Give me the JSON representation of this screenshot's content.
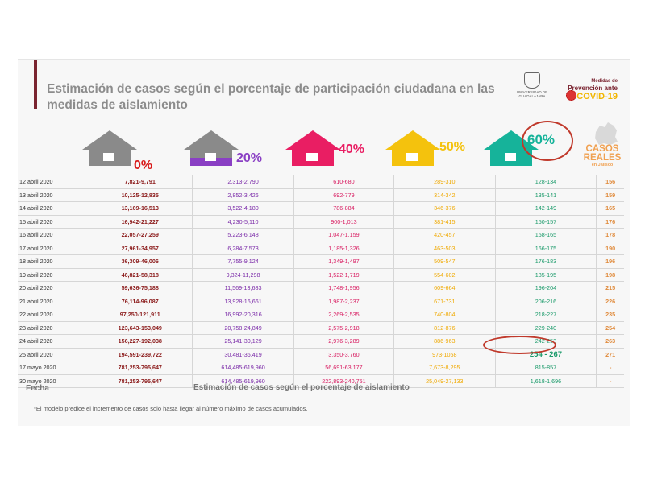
{
  "header": {
    "title": "Estimación de casos según el porcentaje de participación ciudadana en las medidas de aislamiento",
    "udg_logo_text": "UNIVERSIDAD DE GUADALAJARA",
    "covid_logo": {
      "line1": "Medidas de",
      "line2": "Prevención ante",
      "line3": "COVID-19"
    }
  },
  "chart_data": {
    "type": "table",
    "title": "Estimación de casos según el porcentaje de participación ciudadana en las medidas de aislamiento",
    "xlabel": "Estimación de casos según el porcentaje de aislamiento",
    "row_header": "Fecha",
    "columns": [
      {
        "label": "0%",
        "color": "#d81b1b"
      },
      {
        "label": "20%",
        "color": "#8a3fc4"
      },
      {
        "label": "40%",
        "color": "#e91e63"
      },
      {
        "label": "50%",
        "color": "#f4c20d"
      },
      {
        "label": "60%",
        "color": "#16b39a"
      },
      {
        "label": "CASOS REALES",
        "sub": "en Jalisco",
        "color": "#f0a050"
      }
    ],
    "rows": [
      {
        "date": "12 abril 2020",
        "v0": "7,821-9,791",
        "v20": "2,313-2,790",
        "v40": "610-680",
        "v50": "289-310",
        "v60": "128-134",
        "real": "156"
      },
      {
        "date": "13 abril 2020",
        "v0": "10,125-12,835",
        "v20": "2,852-3,426",
        "v40": "692-779",
        "v50": "314-342",
        "v60": "135-141",
        "real": "159"
      },
      {
        "date": "14 abril 2020",
        "v0": "13,169-16,513",
        "v20": "3,522-4,180",
        "v40": "786-884",
        "v50": "346-376",
        "v60": "142-149",
        "real": "165"
      },
      {
        "date": "15 abril 2020",
        "v0": "16,942-21,227",
        "v20": "4,230-5,110",
        "v40": "900-1,013",
        "v50": "381-415",
        "v60": "150-157",
        "real": "176"
      },
      {
        "date": "16 abril 2020",
        "v0": "22,057-27,259",
        "v20": "5,223-6,148",
        "v40": "1,047-1,159",
        "v50": "420-457",
        "v60": "158-165",
        "real": "178"
      },
      {
        "date": "17 abril 2020",
        "v0": "27,961-34,957",
        "v20": "6,284-7,573",
        "v40": "1,185-1,326",
        "v50": "463-503",
        "v60": "166-175",
        "real": "190"
      },
      {
        "date": "18 abril 2020",
        "v0": "36,309-46,006",
        "v20": "7,755-9,124",
        "v40": "1,349-1,497",
        "v50": "509-547",
        "v60": "176-183",
        "real": "196"
      },
      {
        "date": "19 abril 2020",
        "v0": "46,821-58,318",
        "v20": "9,324-11,298",
        "v40": "1,522-1,719",
        "v50": "554-602",
        "v60": "185-195",
        "real": "198"
      },
      {
        "date": "20 abril 2020",
        "v0": "59,636-75,188",
        "v20": "11,569-13,683",
        "v40": "1,748-1,956",
        "v50": "609-664",
        "v60": "196-204",
        "real": "215"
      },
      {
        "date": "21 abril 2020",
        "v0": "76,114-96,087",
        "v20": "13,928-16,661",
        "v40": "1,987-2,237",
        "v50": "671-731",
        "v60": "206-216",
        "real": "226"
      },
      {
        "date": "22 abril 2020",
        "v0": "97,250-121,911",
        "v20": "16,992-20,316",
        "v40": "2,269-2,535",
        "v50": "740-804",
        "v60": "218-227",
        "real": "235"
      },
      {
        "date": "23 abril 2020",
        "v0": "123,643-153,049",
        "v20": "20,758-24,849",
        "v40": "2,575-2,918",
        "v50": "812-876",
        "v60": "229-240",
        "real": "254"
      },
      {
        "date": "24 abril 2020",
        "v0": "156,227-192,038",
        "v20": "25,141-30,129",
        "v40": "2,976-3,289",
        "v50": "886-963",
        "v60": "242-253",
        "real": "263"
      },
      {
        "date": "25 abril 2020",
        "v0": "194,591-239,722",
        "v20": "30,481-36,419",
        "v40": "3,350-3,760",
        "v50": "973-1058",
        "v60": "254 - 267",
        "real": "271"
      },
      {
        "date": "17 mayo 2020",
        "v0": "781,253-795,647",
        "v20": "614,485-619,960",
        "v40": "56,691-63,177",
        "v50": "7,673-8,295",
        "v60": "815-857",
        "real": "-"
      },
      {
        "date": "30 mayo 2020",
        "v0": "781,253-795,647",
        "v20": "614,485-619,960",
        "v40": "222,893-240,751",
        "v50": "25,049-27,133",
        "v60": "1,618-1,696",
        "real": "-"
      }
    ],
    "highlighted": [
      {
        "date": "25 abril 2020",
        "column": "60%"
      },
      {
        "column_header": "60%"
      }
    ]
  },
  "footer": {
    "fecha_label": "Fecha",
    "footnote": "*El modelo predice el incremento de casos solo hasta llegar al número máximo de casos acumulados."
  }
}
